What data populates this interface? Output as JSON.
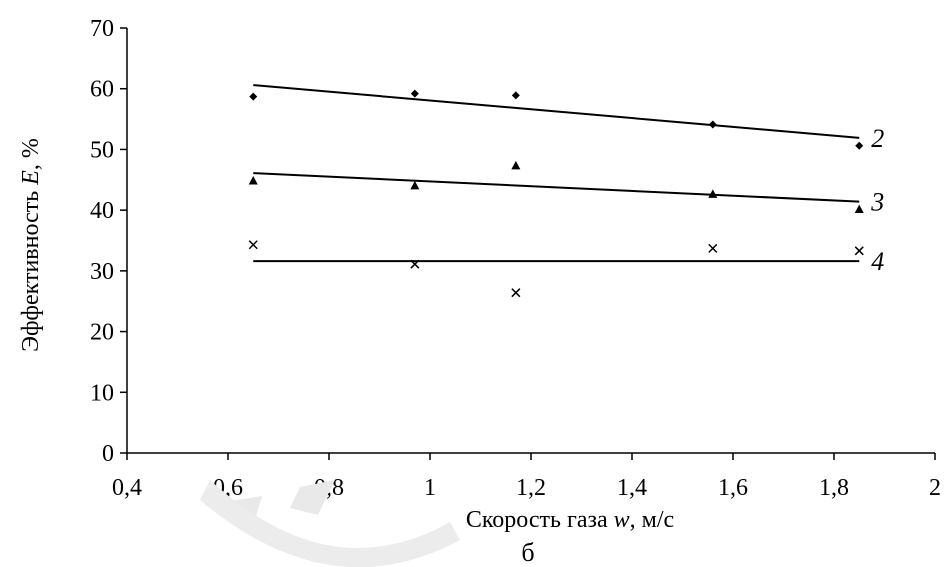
{
  "chart_data": {
    "type": "scatter",
    "xlabel_prefix": "Скорость газа ",
    "xlabel_var": "w",
    "xlabel_suffix": ", м/с",
    "ylabel_prefix": "Эффективность ",
    "ylabel_var": "E",
    "ylabel_suffix": ", %",
    "caption": "б",
    "xlim": [
      0.4,
      2
    ],
    "ylim": [
      0,
      70
    ],
    "x_ticks": [
      0.4,
      0.6,
      0.8,
      1,
      1.2,
      1.4,
      1.6,
      1.8,
      2
    ],
    "x_tick_labels": [
      "0,4",
      "0,6",
      "0,8",
      "1",
      "1,2",
      "1,4",
      "1,6",
      "1,8",
      "2"
    ],
    "y_ticks": [
      0,
      10,
      20,
      30,
      40,
      50,
      60,
      70
    ],
    "y_tick_labels": [
      "0",
      "10",
      "20",
      "30",
      "40",
      "50",
      "60",
      "70"
    ],
    "grid": false,
    "series": [
      {
        "name": "2",
        "marker": "diamond",
        "x": [
          0.65,
          0.97,
          1.17,
          1.56,
          1.85
        ],
        "y": [
          58.7,
          59.2,
          58.9,
          54.1,
          50.6
        ],
        "trend": [
          [
            0.65,
            60.6
          ],
          [
            1.85,
            51.9
          ]
        ]
      },
      {
        "name": "3",
        "marker": "triangle",
        "x": [
          0.65,
          0.97,
          1.17,
          1.56,
          1.85
        ],
        "y": [
          44.8,
          44.0,
          47.3,
          42.6,
          40.1
        ],
        "trend": [
          [
            0.65,
            46.1
          ],
          [
            1.85,
            41.4
          ]
        ]
      },
      {
        "name": "4",
        "marker": "cross",
        "x": [
          0.65,
          0.97,
          1.17,
          1.56,
          1.85
        ],
        "y": [
          34.3,
          31.1,
          26.4,
          33.7,
          33.3
        ],
        "trend": [
          [
            0.65,
            31.6
          ],
          [
            1.85,
            31.6
          ]
        ]
      }
    ]
  }
}
